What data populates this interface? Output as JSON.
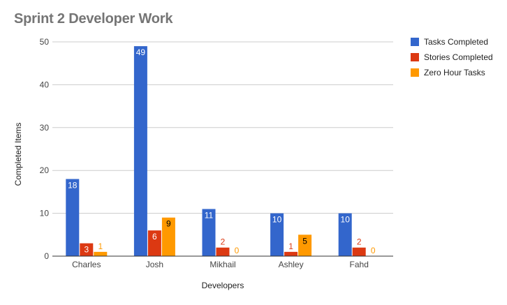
{
  "chart_data": {
    "type": "bar",
    "title": "Sprint 2 Developer Work",
    "xlabel": "Developers",
    "ylabel": "Completed Items",
    "categories": [
      "Charles",
      "Josh",
      "Mikhail",
      "Ashley",
      "Fahd"
    ],
    "ylim": [
      0,
      50
    ],
    "yticks": [
      0,
      10,
      20,
      30,
      40,
      50
    ],
    "grid": true,
    "legend_position": "right",
    "series": [
      {
        "name": "Tasks Completed",
        "color": "#3366cc",
        "values": [
          18,
          49,
          11,
          10,
          10
        ]
      },
      {
        "name": "Stories Completed",
        "color": "#dc3912",
        "values": [
          3,
          6,
          2,
          1,
          2
        ]
      },
      {
        "name": "Zero Hour Tasks",
        "color": "#ff9900",
        "values": [
          1,
          9,
          0,
          5,
          0
        ]
      }
    ]
  }
}
